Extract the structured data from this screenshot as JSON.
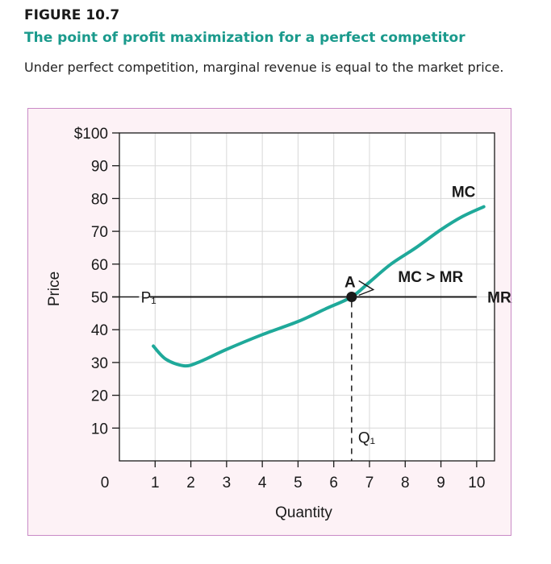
{
  "figure": {
    "label": "FIGURE 10.7",
    "title": "The point of profit maximization for a perfect competitor",
    "caption": "Under perfect competition, marginal revenue is equal to the market price."
  },
  "chart_data": {
    "type": "line",
    "xlabel": "Quantity",
    "ylabel": "Price",
    "xlim": [
      0,
      10.5
    ],
    "ylim": [
      0,
      100
    ],
    "x_ticks": [
      1,
      2,
      3,
      4,
      5,
      6,
      7,
      8,
      9,
      10
    ],
    "x_tick_labels": [
      "1",
      "2",
      "3",
      "4",
      "5",
      "6",
      "7",
      "8",
      "9",
      "10"
    ],
    "x_origin_label": "0",
    "y_ticks": [
      10,
      20,
      30,
      40,
      50,
      60,
      70,
      80,
      90,
      100
    ],
    "y_tick_labels": [
      "10",
      "20",
      "30",
      "40",
      "50",
      "60",
      "70",
      "80",
      "90",
      "$100"
    ],
    "grid": true,
    "series": [
      {
        "name": "MC",
        "color": "#1fa99a",
        "x": [
          0.95,
          1.3,
          1.8,
          2.2,
          3.0,
          4.0,
          5.0,
          5.8,
          6.5,
          7.0,
          7.6,
          8.3,
          9.0,
          9.6,
          10.2
        ],
        "y": [
          35,
          31,
          29,
          30,
          34,
          38.5,
          42.5,
          46.5,
          50,
          54.5,
          60,
          65,
          70.5,
          74.5,
          77.5
        ]
      },
      {
        "name": "MR₁",
        "color": "#1a1a1a",
        "x": [
          0.6,
          10.0
        ],
        "y": [
          50,
          50
        ]
      }
    ],
    "annotations": {
      "price_label": "P₁",
      "price_value": 50,
      "point_label": "A",
      "point": [
        6.5,
        50
      ],
      "quantity_label": "Q₁",
      "comparison_label": "MC > MR",
      "mc_label": "MC",
      "mr_label": "MR₁"
    }
  }
}
